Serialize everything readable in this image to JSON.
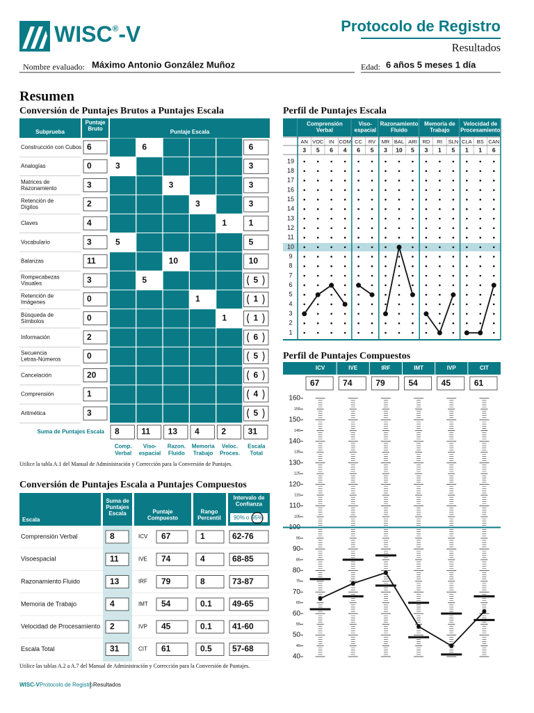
{
  "header": {
    "logo": {
      "main": "WISC",
      "mark": "®",
      "suffix": "-V"
    },
    "title": "Protocolo de Registro",
    "subtitle": "Resultados",
    "name_label": "Nombre evaluado:",
    "name": "Máximo Antonio González Muñoz",
    "age_label": "Edad:",
    "age": "6 años 5 meses 1 día"
  },
  "summary": {
    "title": "Resumen"
  },
  "raw_table": {
    "title": "Conversión de Puntajes Brutos a Puntajes Escala",
    "headers": {
      "subtest": "Subprueba",
      "raw": [
        "Puntaje",
        "Bruto"
      ],
      "scaled": "Puntaje Escala"
    },
    "rows": [
      {
        "name": [
          "Construcción con Cubos"
        ],
        "raw": 6,
        "scores": [
          null,
          6,
          null,
          null,
          null,
          6
        ],
        "supplementary": false
      },
      {
        "name": [
          "Analogías"
        ],
        "raw": 0,
        "scores": [
          3,
          null,
          null,
          null,
          null,
          3
        ],
        "supplementary": false
      },
      {
        "name": [
          "Matrices de",
          "Razonamiento"
        ],
        "raw": 3,
        "scores": [
          null,
          null,
          3,
          null,
          null,
          3
        ],
        "supplementary": false
      },
      {
        "name": [
          "Retención de",
          "Dígitos"
        ],
        "raw": 2,
        "scores": [
          null,
          null,
          null,
          3,
          null,
          3
        ],
        "supplementary": false
      },
      {
        "name": [
          "Claves"
        ],
        "raw": 4,
        "scores": [
          null,
          null,
          null,
          null,
          1,
          1
        ],
        "supplementary": false
      },
      {
        "name": [
          "Vocabulario"
        ],
        "raw": 3,
        "scores": [
          5,
          null,
          null,
          null,
          null,
          5
        ],
        "supplementary": false
      },
      {
        "name": [
          "Balanzas"
        ],
        "raw": 11,
        "scores": [
          null,
          null,
          10,
          null,
          null,
          10
        ],
        "supplementary": false
      },
      {
        "name": [
          "Rompecabezas",
          "Visuales"
        ],
        "raw": 3,
        "scores": [
          null,
          5,
          null,
          null,
          null,
          5
        ],
        "supplementary": true
      },
      {
        "name": [
          "Retención de",
          "Imágenes"
        ],
        "raw": 0,
        "scores": [
          null,
          null,
          null,
          1,
          null,
          1
        ],
        "supplementary": true
      },
      {
        "name": [
          "Búsqueda de",
          "Símbolos"
        ],
        "raw": 0,
        "scores": [
          null,
          null,
          null,
          null,
          1,
          1
        ],
        "supplementary": true
      },
      {
        "name": [
          "Información"
        ],
        "raw": 2,
        "scores": [
          null,
          null,
          null,
          null,
          null,
          6
        ],
        "supplementary": true
      },
      {
        "name": [
          "Secuencia",
          "Letras-Números"
        ],
        "raw": 0,
        "scores": [
          null,
          null,
          null,
          null,
          null,
          5
        ],
        "supplementary": true
      },
      {
        "name": [
          "Cancelación"
        ],
        "raw": 20,
        "scores": [
          null,
          null,
          null,
          null,
          null,
          6
        ],
        "supplementary": true
      },
      {
        "name": [
          "Comprensión"
        ],
        "raw": 1,
        "scores": [
          null,
          null,
          null,
          null,
          null,
          4
        ],
        "supplementary": true
      },
      {
        "name": [
          "Aritmética"
        ],
        "raw": 3,
        "scores": [
          null,
          null,
          null,
          null,
          null,
          5
        ],
        "supplementary": true
      }
    ],
    "sum_label": "Suma de Puntajes Escala",
    "sums": [
      8,
      11,
      13,
      4,
      2,
      31
    ],
    "index_labels": [
      [
        "Comp.",
        "Verbal"
      ],
      [
        "Viso-",
        "espacial"
      ],
      [
        "Razon.",
        "Fluido"
      ],
      [
        "Memoria",
        "Trabajo"
      ],
      [
        "Veloc.",
        "Proces."
      ],
      [
        "Escala",
        "Total"
      ]
    ],
    "note": "Utilice la tabla A.1 del Manual de Administración y Corrección para la Conversión de Puntajes."
  },
  "composite_table": {
    "title": "Conversión de Puntajes Escala a Puntajes Compuestos",
    "headers": {
      "scale": "Escala",
      "sum": [
        "Suma de",
        "Puntajes",
        "Escala"
      ],
      "composite": [
        "Puntaje",
        "Compuesto"
      ],
      "percentile": [
        "Rango",
        "Percentil"
      ],
      "interval": [
        "Intervalo de",
        "Confianza"
      ]
    },
    "confidence_options": [
      "90%",
      "95%"
    ],
    "confidence_separator": "o",
    "selected_confidence": 1,
    "rows": [
      {
        "name": "Comprensión Verbal",
        "sum": 8,
        "index": "ICV",
        "composite": 67,
        "percentile": 1,
        "interval": "62-76"
      },
      {
        "name": "Visoespacial",
        "sum": 11,
        "index": "IVE",
        "composite": 74,
        "percentile": 4,
        "interval": "68-85"
      },
      {
        "name": "Razonamiento Fluido",
        "sum": 13,
        "index": "IRF",
        "composite": 79,
        "percentile": 8,
        "interval": "73-87"
      },
      {
        "name": "Memoria de Trabajo",
        "sum": 4,
        "index": "IMT",
        "composite": 54,
        "percentile": 0.1,
        "interval": "49-65"
      },
      {
        "name": "Velocidad de Procesamiento",
        "sum": 2,
        "index": "IVP",
        "composite": 45,
        "percentile": 0.1,
        "interval": "41-60"
      },
      {
        "name": "Escala Total",
        "sum": 31,
        "index": "CIT",
        "composite": 61,
        "percentile": 0.5,
        "interval": "57-68"
      }
    ],
    "note": "Utilice las tablas A.2 a A.7 del Manual de Administración y Corrección para la Conversión de Puntajes."
  },
  "footer": {
    "brand": "WISC-V",
    "document": "Protocolo de Registro",
    "section": "Resultados"
  },
  "chart_data": [
    {
      "type": "dot-profile",
      "title": "Perfil de Puntajes Escala",
      "groups": [
        {
          "name": [
            "Comprensión",
            "Verbal"
          ],
          "categories": [
            "AN",
            "VOC",
            "IN",
            "COM"
          ],
          "values": [
            3,
            5,
            6,
            4
          ]
        },
        {
          "name": [
            "Viso-",
            "espacial"
          ],
          "categories": [
            "CC",
            "RV"
          ],
          "values": [
            6,
            5
          ]
        },
        {
          "name": [
            "Razonamiento",
            "Fluido"
          ],
          "categories": [
            "MR",
            "BAL",
            "ARI"
          ],
          "values": [
            3,
            10,
            5
          ]
        },
        {
          "name": [
            "Memoria de",
            "Trabajo"
          ],
          "categories": [
            "RD",
            "RI",
            "SLN"
          ],
          "values": [
            3,
            1,
            5
          ]
        },
        {
          "name": [
            "Velocidad de",
            "Procesamiento"
          ],
          "categories": [
            "CLA",
            "BS",
            "CAN"
          ],
          "values": [
            1,
            1,
            6
          ]
        }
      ],
      "ylim": [
        1,
        19
      ],
      "yticks": [
        1,
        2,
        3,
        4,
        5,
        6,
        7,
        8,
        9,
        10,
        11,
        12,
        13,
        14,
        15,
        16,
        17,
        18,
        19
      ],
      "highlight": 10,
      "color": "#0a7b86"
    },
    {
      "type": "composite-profile",
      "title": "Perfil de Puntajes Compuestos",
      "categories": [
        "ICV",
        "IVE",
        "IRF",
        "IMT",
        "IVP",
        "CIT"
      ],
      "values": [
        67,
        74,
        79,
        54,
        45,
        61
      ],
      "intervals": [
        [
          62,
          76
        ],
        [
          68,
          85
        ],
        [
          73,
          87
        ],
        [
          49,
          65
        ],
        [
          41,
          60
        ],
        [
          57,
          68
        ]
      ],
      "ylim": [
        40,
        160
      ],
      "yticks": [
        40,
        45,
        50,
        55,
        60,
        65,
        70,
        75,
        80,
        85,
        90,
        95,
        100,
        105,
        110,
        115,
        120,
        125,
        130,
        135,
        140,
        145,
        150,
        155,
        160
      ],
      "highlight": 100,
      "color": "#0a7b86"
    }
  ]
}
